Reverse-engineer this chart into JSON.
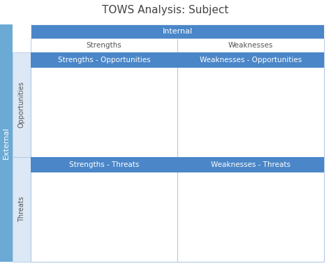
{
  "title": "TOWS Analysis: Subject",
  "title_fontsize": 11,
  "header_bg": "#4a86c8",
  "header_text_color": "#ffffff",
  "sidebar_bg": "#6aaad4",
  "cell_bg": "#ffffff",
  "border_color": "#aac4e0",
  "row_label_bg": "#dce8f5",
  "internal_label": "Internal",
  "external_label": "External",
  "col_labels": [
    "Strengths",
    "Weaknesses"
  ],
  "row_labels": [
    "Opportunities",
    "Threats"
  ],
  "quadrant_labels": [
    [
      "Strengths - Opportunities",
      "Weaknesses - Opportunities"
    ],
    [
      "Strengths - Threats",
      "Weaknesses - Threats"
    ]
  ],
  "figure_bg": "#ffffff",
  "quadrant_label_fontsize": 7.5,
  "row_label_fontsize": 7,
  "col_header_fontsize": 7.5,
  "internal_fontsize": 8,
  "external_fontsize": 8,
  "title_color": "#444444",
  "col_label_color": "#555555",
  "row_label_color": "#555555"
}
